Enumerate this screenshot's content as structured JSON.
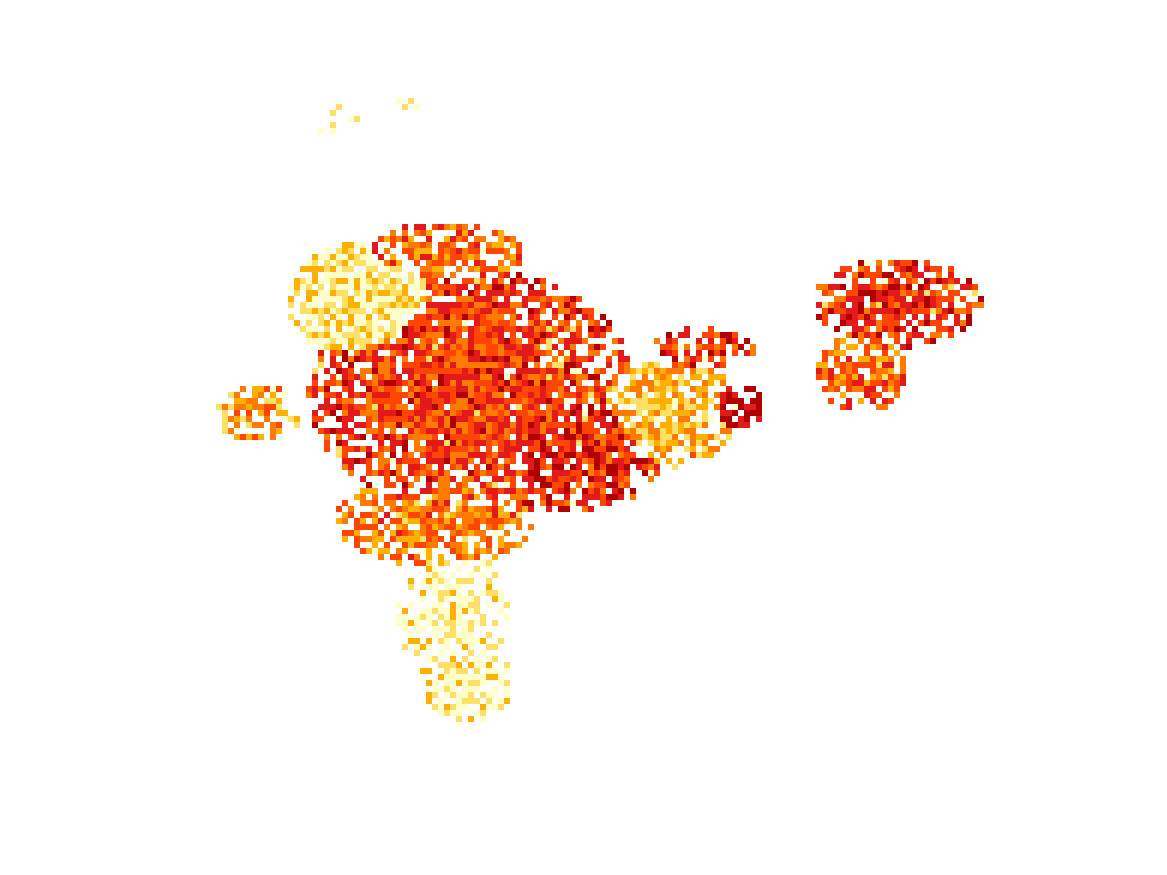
{
  "map": {
    "type": "gridded-heatmap",
    "background": "#ffffff",
    "colormap": {
      "name": "yellow-orange-red",
      "stops": [
        "#ffffcc",
        "#ffe066",
        "#ffb000",
        "#ff7a00",
        "#ff4500",
        "#e31a1c",
        "#b00000"
      ]
    },
    "colorbar_visible": false,
    "axes_visible": false,
    "title": ""
  }
}
